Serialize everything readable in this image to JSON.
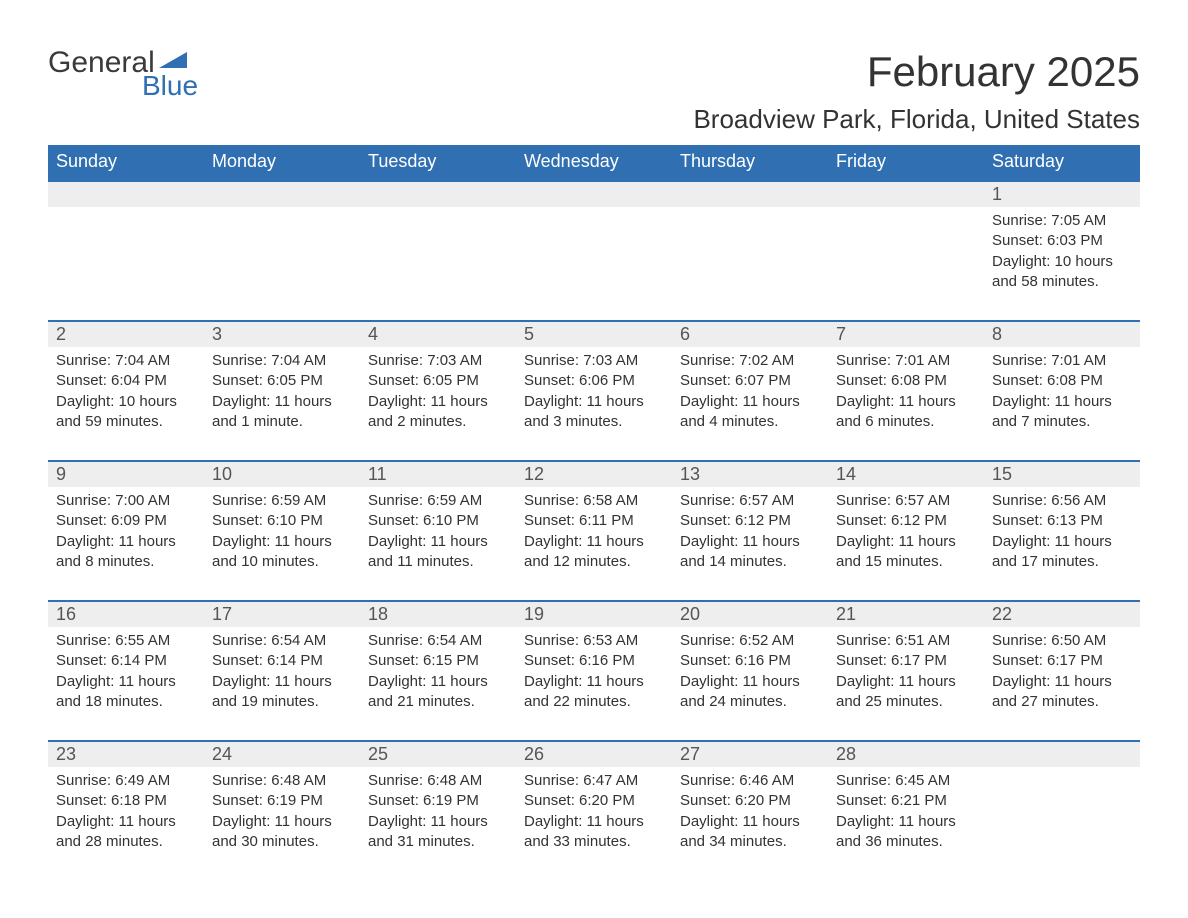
{
  "logo": {
    "word1": "General",
    "word2": "Blue",
    "flag_color": "#2f6fb2"
  },
  "title": "February 2025",
  "location": "Broadview Park, Florida, United States",
  "colors": {
    "header_bg": "#2f6fb2",
    "header_text": "#ffffff",
    "band_bg": "#eeeeee",
    "band_border": "#2f6fb2",
    "text": "#333333"
  },
  "day_headers": [
    "Sunday",
    "Monday",
    "Tuesday",
    "Wednesday",
    "Thursday",
    "Friday",
    "Saturday"
  ],
  "weeks": [
    [
      null,
      null,
      null,
      null,
      null,
      null,
      {
        "n": "1",
        "sunrise": "7:05 AM",
        "sunset": "6:03 PM",
        "daylight": "10 hours and 58 minutes."
      }
    ],
    [
      {
        "n": "2",
        "sunrise": "7:04 AM",
        "sunset": "6:04 PM",
        "daylight": "10 hours and 59 minutes."
      },
      {
        "n": "3",
        "sunrise": "7:04 AM",
        "sunset": "6:05 PM",
        "daylight": "11 hours and 1 minute."
      },
      {
        "n": "4",
        "sunrise": "7:03 AM",
        "sunset": "6:05 PM",
        "daylight": "11 hours and 2 minutes."
      },
      {
        "n": "5",
        "sunrise": "7:03 AM",
        "sunset": "6:06 PM",
        "daylight": "11 hours and 3 minutes."
      },
      {
        "n": "6",
        "sunrise": "7:02 AM",
        "sunset": "6:07 PM",
        "daylight": "11 hours and 4 minutes."
      },
      {
        "n": "7",
        "sunrise": "7:01 AM",
        "sunset": "6:08 PM",
        "daylight": "11 hours and 6 minutes."
      },
      {
        "n": "8",
        "sunrise": "7:01 AM",
        "sunset": "6:08 PM",
        "daylight": "11 hours and 7 minutes."
      }
    ],
    [
      {
        "n": "9",
        "sunrise": "7:00 AM",
        "sunset": "6:09 PM",
        "daylight": "11 hours and 8 minutes."
      },
      {
        "n": "10",
        "sunrise": "6:59 AM",
        "sunset": "6:10 PM",
        "daylight": "11 hours and 10 minutes."
      },
      {
        "n": "11",
        "sunrise": "6:59 AM",
        "sunset": "6:10 PM",
        "daylight": "11 hours and 11 minutes."
      },
      {
        "n": "12",
        "sunrise": "6:58 AM",
        "sunset": "6:11 PM",
        "daylight": "11 hours and 12 minutes."
      },
      {
        "n": "13",
        "sunrise": "6:57 AM",
        "sunset": "6:12 PM",
        "daylight": "11 hours and 14 minutes."
      },
      {
        "n": "14",
        "sunrise": "6:57 AM",
        "sunset": "6:12 PM",
        "daylight": "11 hours and 15 minutes."
      },
      {
        "n": "15",
        "sunrise": "6:56 AM",
        "sunset": "6:13 PM",
        "daylight": "11 hours and 17 minutes."
      }
    ],
    [
      {
        "n": "16",
        "sunrise": "6:55 AM",
        "sunset": "6:14 PM",
        "daylight": "11 hours and 18 minutes."
      },
      {
        "n": "17",
        "sunrise": "6:54 AM",
        "sunset": "6:14 PM",
        "daylight": "11 hours and 19 minutes."
      },
      {
        "n": "18",
        "sunrise": "6:54 AM",
        "sunset": "6:15 PM",
        "daylight": "11 hours and 21 minutes."
      },
      {
        "n": "19",
        "sunrise": "6:53 AM",
        "sunset": "6:16 PM",
        "daylight": "11 hours and 22 minutes."
      },
      {
        "n": "20",
        "sunrise": "6:52 AM",
        "sunset": "6:16 PM",
        "daylight": "11 hours and 24 minutes."
      },
      {
        "n": "21",
        "sunrise": "6:51 AM",
        "sunset": "6:17 PM",
        "daylight": "11 hours and 25 minutes."
      },
      {
        "n": "22",
        "sunrise": "6:50 AM",
        "sunset": "6:17 PM",
        "daylight": "11 hours and 27 minutes."
      }
    ],
    [
      {
        "n": "23",
        "sunrise": "6:49 AM",
        "sunset": "6:18 PM",
        "daylight": "11 hours and 28 minutes."
      },
      {
        "n": "24",
        "sunrise": "6:48 AM",
        "sunset": "6:19 PM",
        "daylight": "11 hours and 30 minutes."
      },
      {
        "n": "25",
        "sunrise": "6:48 AM",
        "sunset": "6:19 PM",
        "daylight": "11 hours and 31 minutes."
      },
      {
        "n": "26",
        "sunrise": "6:47 AM",
        "sunset": "6:20 PM",
        "daylight": "11 hours and 33 minutes."
      },
      {
        "n": "27",
        "sunrise": "6:46 AM",
        "sunset": "6:20 PM",
        "daylight": "11 hours and 34 minutes."
      },
      {
        "n": "28",
        "sunrise": "6:45 AM",
        "sunset": "6:21 PM",
        "daylight": "11 hours and 36 minutes."
      },
      null
    ]
  ],
  "labels": {
    "sunrise": "Sunrise: ",
    "sunset": "Sunset: ",
    "daylight": "Daylight: "
  }
}
